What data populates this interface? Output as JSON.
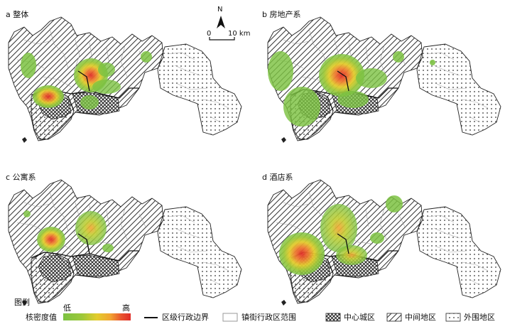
{
  "panels": [
    {
      "id": "a",
      "title": "a 整体"
    },
    {
      "id": "b",
      "title": "b 房地产系"
    },
    {
      "id": "c",
      "title": "c 公寓系"
    },
    {
      "id": "d",
      "title": "d 酒店系"
    }
  ],
  "north_arrow": {
    "label": "N"
  },
  "scale_bar": {
    "start": "0",
    "end": "10 km"
  },
  "legend": {
    "title": "图例",
    "density_label": "核密度值",
    "low": "低",
    "high": "高",
    "ramp_colors": [
      "#7cc242",
      "#9dc83a",
      "#c2cf33",
      "#e3cc2d",
      "#f2a431",
      "#ee7d30",
      "#e8542e",
      "#e02d28"
    ],
    "items": [
      {
        "name": "district-boundary",
        "label": "区级行政边界",
        "symbol": "line"
      },
      {
        "name": "street-boundary",
        "label": "镇街行政区范围",
        "symbol": "outline-box"
      },
      {
        "name": "core-area",
        "label": "中心城区",
        "symbol": "cross-hatch"
      },
      {
        "name": "middle-area",
        "label": "中间地区",
        "symbol": "diagonal-hatch"
      },
      {
        "name": "outer-area",
        "label": "外围地区",
        "symbol": "dots"
      }
    ]
  }
}
